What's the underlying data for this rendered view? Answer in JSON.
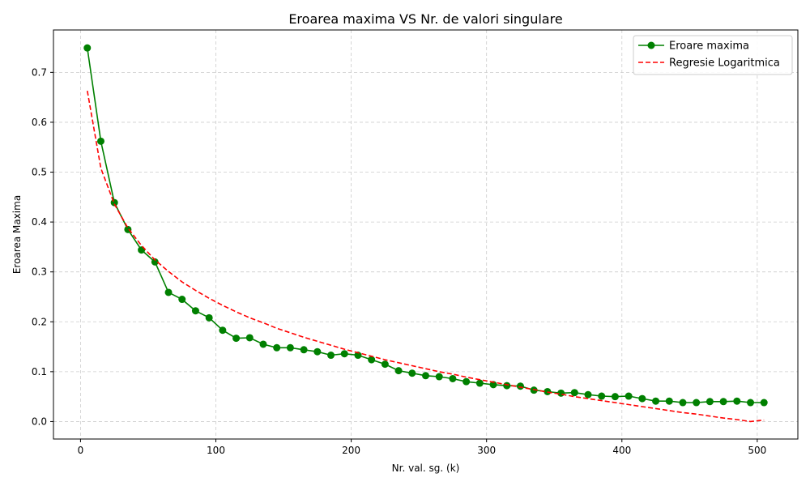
{
  "chart_data": {
    "type": "line",
    "title": "Eroarea maxima VS Nr. de valori singulare",
    "xlabel": "Nr. val. sg. (k)",
    "ylabel": "Eroarea Maxima",
    "xlim": [
      -20,
      530
    ],
    "ylim": [
      -0.035,
      0.785
    ],
    "xticks": [
      0,
      100,
      200,
      300,
      400,
      500
    ],
    "yticks": [
      0.0,
      0.1,
      0.2,
      0.3,
      0.4,
      0.5,
      0.6,
      0.7
    ],
    "grid": true,
    "legend_position": "top-right",
    "series": [
      {
        "name": "Eroare maxima",
        "style": "solid-line-with-circle-markers",
        "color": "#008000",
        "x": [
          5,
          15,
          25,
          35,
          45,
          55,
          65,
          75,
          85,
          95,
          105,
          115,
          125,
          135,
          145,
          155,
          165,
          175,
          185,
          195,
          205,
          215,
          225,
          235,
          245,
          255,
          265,
          275,
          285,
          295,
          305,
          315,
          325,
          335,
          345,
          355,
          365,
          375,
          385,
          395,
          405,
          415,
          425,
          435,
          445,
          455,
          465,
          475,
          485,
          495,
          505
        ],
        "y": [
          0.749,
          0.562,
          0.439,
          0.385,
          0.344,
          0.32,
          0.259,
          0.245,
          0.222,
          0.208,
          0.183,
          0.167,
          0.168,
          0.155,
          0.148,
          0.148,
          0.144,
          0.14,
          0.133,
          0.136,
          0.133,
          0.124,
          0.115,
          0.102,
          0.097,
          0.092,
          0.09,
          0.086,
          0.08,
          0.077,
          0.074,
          0.072,
          0.071,
          0.063,
          0.06,
          0.057,
          0.058,
          0.054,
          0.051,
          0.05,
          0.051,
          0.046,
          0.041,
          0.041,
          0.038,
          0.038,
          0.04,
          0.04,
          0.041,
          0.038,
          0.038
        ]
      },
      {
        "name": "Regresie Logaritmica",
        "style": "dashed-line",
        "color": "#ff0000",
        "x": [
          5,
          15,
          25,
          35,
          45,
          55,
          65,
          75,
          85,
          95,
          105,
          115,
          125,
          135,
          145,
          155,
          165,
          175,
          185,
          195,
          205,
          215,
          225,
          235,
          245,
          255,
          265,
          275,
          285,
          295,
          305,
          315,
          325,
          335,
          345,
          355,
          365,
          375,
          385,
          395,
          405,
          415,
          425,
          435,
          445,
          455,
          465,
          475,
          485,
          495,
          505
        ],
        "y": [
          0.663,
          0.508,
          0.436,
          0.388,
          0.353,
          0.324,
          0.301,
          0.28,
          0.263,
          0.247,
          0.233,
          0.22,
          0.208,
          0.198,
          0.187,
          0.178,
          0.169,
          0.161,
          0.153,
          0.145,
          0.138,
          0.131,
          0.124,
          0.118,
          0.112,
          0.106,
          0.1,
          0.095,
          0.089,
          0.084,
          0.079,
          0.074,
          0.069,
          0.064,
          0.059,
          0.055,
          0.05,
          0.046,
          0.042,
          0.038,
          0.034,
          0.03,
          0.026,
          0.022,
          0.018,
          0.015,
          0.011,
          0.007,
          0.004,
          0.0,
          0.003
        ]
      }
    ]
  }
}
